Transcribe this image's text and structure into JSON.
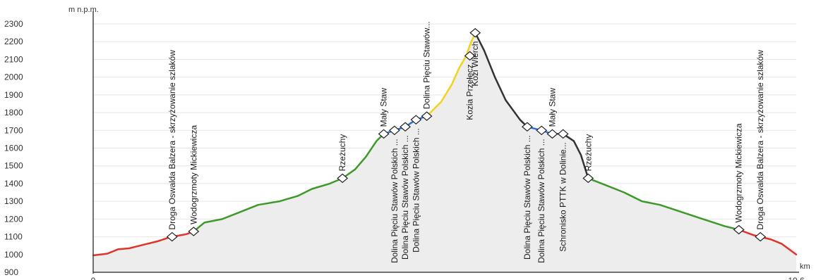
{
  "chart_data": {
    "type": "area",
    "ylabel": "m n.p.m.",
    "xlabel": "km",
    "y_ticks": [
      900,
      1000,
      1100,
      1200,
      1300,
      1400,
      1500,
      1600,
      1700,
      1800,
      1900,
      2000,
      2100,
      2200,
      2300
    ],
    "x_ticks": [
      "0",
      "19.6"
    ],
    "xlim": [
      0,
      19.6
    ],
    "ylim": [
      900,
      2300
    ],
    "grid": true,
    "segment_colors": {
      "red": "#e0342a",
      "green": "#3d9a2a",
      "blue": "#2a6fd6",
      "yellow": "#f2d21e",
      "black": "#333333"
    },
    "segments": [
      {
        "color": "red",
        "points": [
          [
            0.0,
            995
          ],
          [
            0.4,
            1005
          ],
          [
            0.7,
            1030
          ],
          [
            1.0,
            1035
          ],
          [
            1.4,
            1055
          ],
          [
            1.8,
            1075
          ],
          [
            2.1,
            1095
          ],
          [
            2.2,
            1100
          ],
          [
            2.6,
            1115
          ],
          [
            2.8,
            1130
          ]
        ]
      },
      {
        "color": "green",
        "points": [
          [
            2.8,
            1130
          ],
          [
            3.1,
            1180
          ],
          [
            3.6,
            1200
          ],
          [
            4.1,
            1240
          ],
          [
            4.6,
            1280
          ],
          [
            5.2,
            1300
          ],
          [
            5.7,
            1330
          ],
          [
            6.1,
            1370
          ],
          [
            6.6,
            1400
          ],
          [
            6.95,
            1430
          ],
          [
            7.3,
            1480
          ],
          [
            7.6,
            1550
          ],
          [
            7.9,
            1640
          ],
          [
            8.1,
            1680
          ]
        ]
      },
      {
        "color": "blue",
        "points": [
          [
            8.1,
            1680
          ],
          [
            8.4,
            1700
          ],
          [
            8.7,
            1720
          ],
          [
            9.0,
            1760
          ],
          [
            9.3,
            1780
          ]
        ]
      },
      {
        "color": "yellow",
        "points": [
          [
            9.3,
            1780
          ],
          [
            9.7,
            1860
          ],
          [
            10.0,
            1960
          ],
          [
            10.2,
            2050
          ],
          [
            10.4,
            2120
          ],
          [
            10.5,
            2180
          ],
          [
            10.65,
            2250
          ]
        ]
      },
      {
        "color": "black",
        "points": [
          [
            10.65,
            2250
          ],
          [
            10.9,
            2150
          ],
          [
            11.2,
            2000
          ],
          [
            11.5,
            1870
          ],
          [
            11.9,
            1760
          ],
          [
            12.1,
            1720
          ]
        ]
      },
      {
        "color": "blue",
        "points": [
          [
            12.1,
            1720
          ],
          [
            12.5,
            1700
          ],
          [
            12.8,
            1680
          ],
          [
            13.1,
            1680
          ]
        ]
      },
      {
        "color": "black",
        "points": [
          [
            13.1,
            1680
          ],
          [
            13.4,
            1640
          ],
          [
            13.6,
            1560
          ],
          [
            13.8,
            1430
          ]
        ]
      },
      {
        "color": "green",
        "points": [
          [
            13.8,
            1430
          ],
          [
            14.3,
            1390
          ],
          [
            14.8,
            1350
          ],
          [
            15.3,
            1300
          ],
          [
            15.8,
            1280
          ],
          [
            16.4,
            1240
          ],
          [
            17.0,
            1200
          ],
          [
            17.6,
            1160
          ],
          [
            18.0,
            1140
          ]
        ]
      },
      {
        "color": "red",
        "points": [
          [
            18.0,
            1140
          ],
          [
            18.4,
            1110
          ],
          [
            18.9,
            1085
          ],
          [
            19.2,
            1060
          ],
          [
            19.6,
            1000
          ]
        ]
      }
    ],
    "waypoints": [
      {
        "x": 2.2,
        "y": 1100,
        "label": "Droga Oswalda Balzera - skrzyżowanie szlaków",
        "pos": "above"
      },
      {
        "x": 2.8,
        "y": 1130,
        "label": "Wodogrzmoty Mickiewicza",
        "pos": "above"
      },
      {
        "x": 6.95,
        "y": 1430,
        "label": "Rzeżuchy",
        "pos": "above"
      },
      {
        "x": 8.1,
        "y": 1680,
        "label": "Mały Staw",
        "pos": "above"
      },
      {
        "x": 8.4,
        "y": 1700,
        "label": "Dolina Pięciu Stawów Polskich ...",
        "pos": "below"
      },
      {
        "x": 8.7,
        "y": 1720,
        "label": "Dolina Pięciu Stawów Polskich ...",
        "pos": "below"
      },
      {
        "x": 9.0,
        "y": 1760,
        "label": "Dolina Pięciu Stawów Polskich ...",
        "pos": "below"
      },
      {
        "x": 9.3,
        "y": 1780,
        "label": "Dolina Pięciu Stawów...",
        "pos": "above"
      },
      {
        "x": 10.5,
        "y": 2120,
        "label": "Kozia Przełęcz",
        "pos": "below"
      },
      {
        "x": 10.65,
        "y": 2250,
        "label": "Kozi Wierch",
        "pos": "below"
      },
      {
        "x": 12.1,
        "y": 1720,
        "label": "Dolina Pięciu Stawów Polskich ...",
        "pos": "below"
      },
      {
        "x": 12.5,
        "y": 1700,
        "label": "Dolina Pięciu Stawów Polskich ...",
        "pos": "below"
      },
      {
        "x": 12.8,
        "y": 1680,
        "label": "Mały Staw",
        "pos": "above"
      },
      {
        "x": 13.1,
        "y": 1680,
        "label": "Schronisko PTTK w Dolinie...",
        "pos": "below"
      },
      {
        "x": 13.8,
        "y": 1430,
        "label": "Rzeżuchy",
        "pos": "above"
      },
      {
        "x": 18.0,
        "y": 1140,
        "label": "Wodogrzmoty Mickiewicza",
        "pos": "above"
      },
      {
        "x": 18.6,
        "y": 1100,
        "label": "Droga Oswalda Balzera - skrzyżowanie szlaków",
        "pos": "above"
      }
    ]
  }
}
